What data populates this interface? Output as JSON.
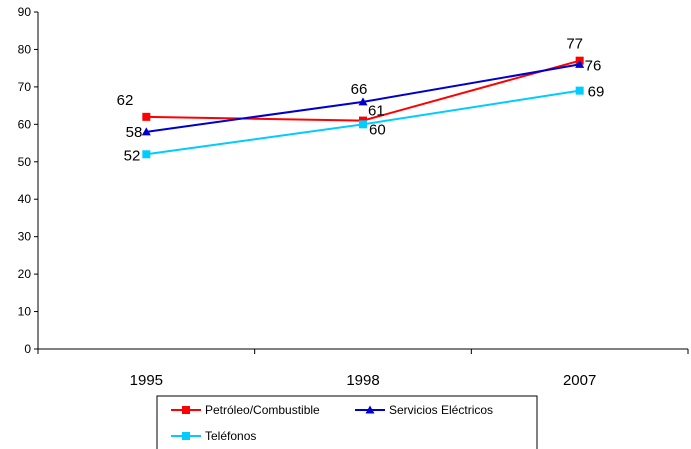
{
  "chart_data": {
    "type": "line",
    "categories": [
      "1995",
      "1998",
      "2007"
    ],
    "ylim": [
      0,
      90
    ],
    "yticks": [
      0,
      10,
      20,
      30,
      40,
      50,
      60,
      70,
      80,
      90
    ],
    "grid": false,
    "legend_position": "bottom",
    "series": [
      {
        "name": "Petróleo/Combustible",
        "values": [
          62,
          61,
          77
        ],
        "color": "#ff0000",
        "marker": "square"
      },
      {
        "name": "Servicios Eléctricos",
        "values": [
          58,
          66,
          76
        ],
        "color": "#0000cc",
        "marker": "triangle"
      },
      {
        "name": "Teléfonos",
        "values": [
          52,
          60,
          69
        ],
        "color": "#00ccff",
        "marker": "square"
      }
    ]
  }
}
